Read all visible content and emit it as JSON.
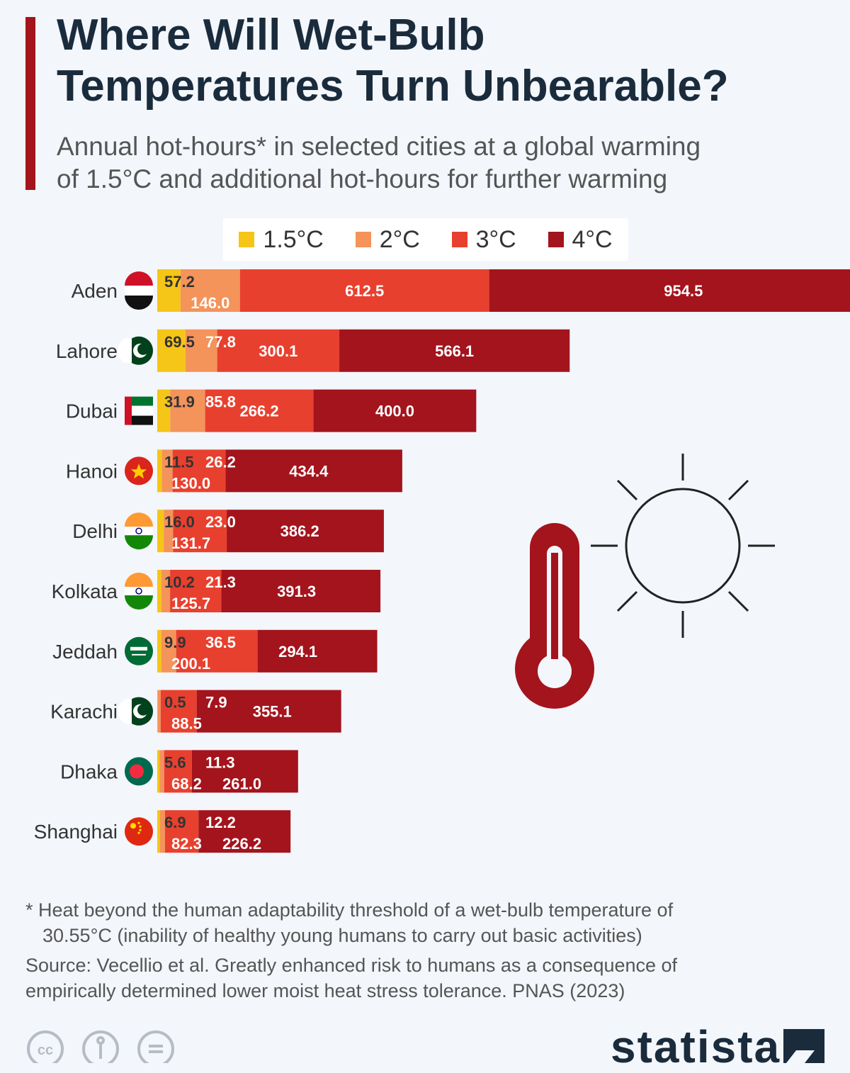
{
  "title_line1": "Where Will Wet-Bulb",
  "title_line2": "Temperatures Turn Unbearable?",
  "subtitle_line1": "Annual hot-hours* in selected cities at a global warming",
  "subtitle_line2": "of 1.5°C and additional hot-hours for further warming",
  "footnote_line1": "* Heat beyond the human adaptability threshold of a wet-bulb temperature of",
  "footnote_line2": "30.55°C (inability of healthy young humans to carry out basic activities)",
  "source_line1": "Source: Vecellio et al. Greatly enhanced risk to humans as a consequence of",
  "source_line2": "empirically determined lower moist heat stress tolerance. PNAS (2023)",
  "brand": "statista",
  "colors": {
    "c15": "#f5c518",
    "c2": "#f4935a",
    "c3": "#e8402e",
    "c4": "#a3141d",
    "title_bar": "#a3141d"
  },
  "chart_data": {
    "type": "bar",
    "orientation": "horizontal",
    "stacked": true,
    "title": "Where Will Wet-Bulb Temperatures Turn Unbearable?",
    "subtitle": "Annual hot-hours* in selected cities at a global warming of 1.5°C and additional hot-hours for further warming",
    "legend_position": "top",
    "categories": [
      "Aden",
      "Lahore",
      "Dubai",
      "Hanoi",
      "Delhi",
      "Kolkata",
      "Jeddah",
      "Karachi",
      "Dhaka",
      "Shanghai"
    ],
    "flags": [
      "yemen-flag-icon",
      "pakistan-flag-icon",
      "uae-flag-icon",
      "vietnam-flag-icon",
      "india-flag-icon",
      "india-flag-icon",
      "saudi-arabia-flag-icon",
      "pakistan-flag-icon",
      "bangladesh-flag-icon",
      "china-flag-icon"
    ],
    "series": [
      {
        "name": "1.5°C",
        "color": "#f5c518",
        "values": [
          57.2,
          69.5,
          31.9,
          11.5,
          16.0,
          10.2,
          9.9,
          0.5,
          5.6,
          6.9
        ]
      },
      {
        "name": "2°C",
        "color": "#f4935a",
        "values": [
          146.0,
          77.8,
          85.8,
          26.2,
          23.0,
          21.3,
          36.5,
          7.9,
          11.3,
          12.2
        ]
      },
      {
        "name": "3°C",
        "color": "#e8402e",
        "values": [
          612.5,
          300.1,
          266.2,
          130.0,
          131.7,
          125.7,
          200.1,
          88.5,
          68.2,
          82.3
        ]
      },
      {
        "name": "4°C",
        "color": "#a3141d",
        "values": [
          954.5,
          566.1,
          400.0,
          434.4,
          386.2,
          391.3,
          294.1,
          355.1,
          261.0,
          226.2
        ]
      }
    ]
  }
}
